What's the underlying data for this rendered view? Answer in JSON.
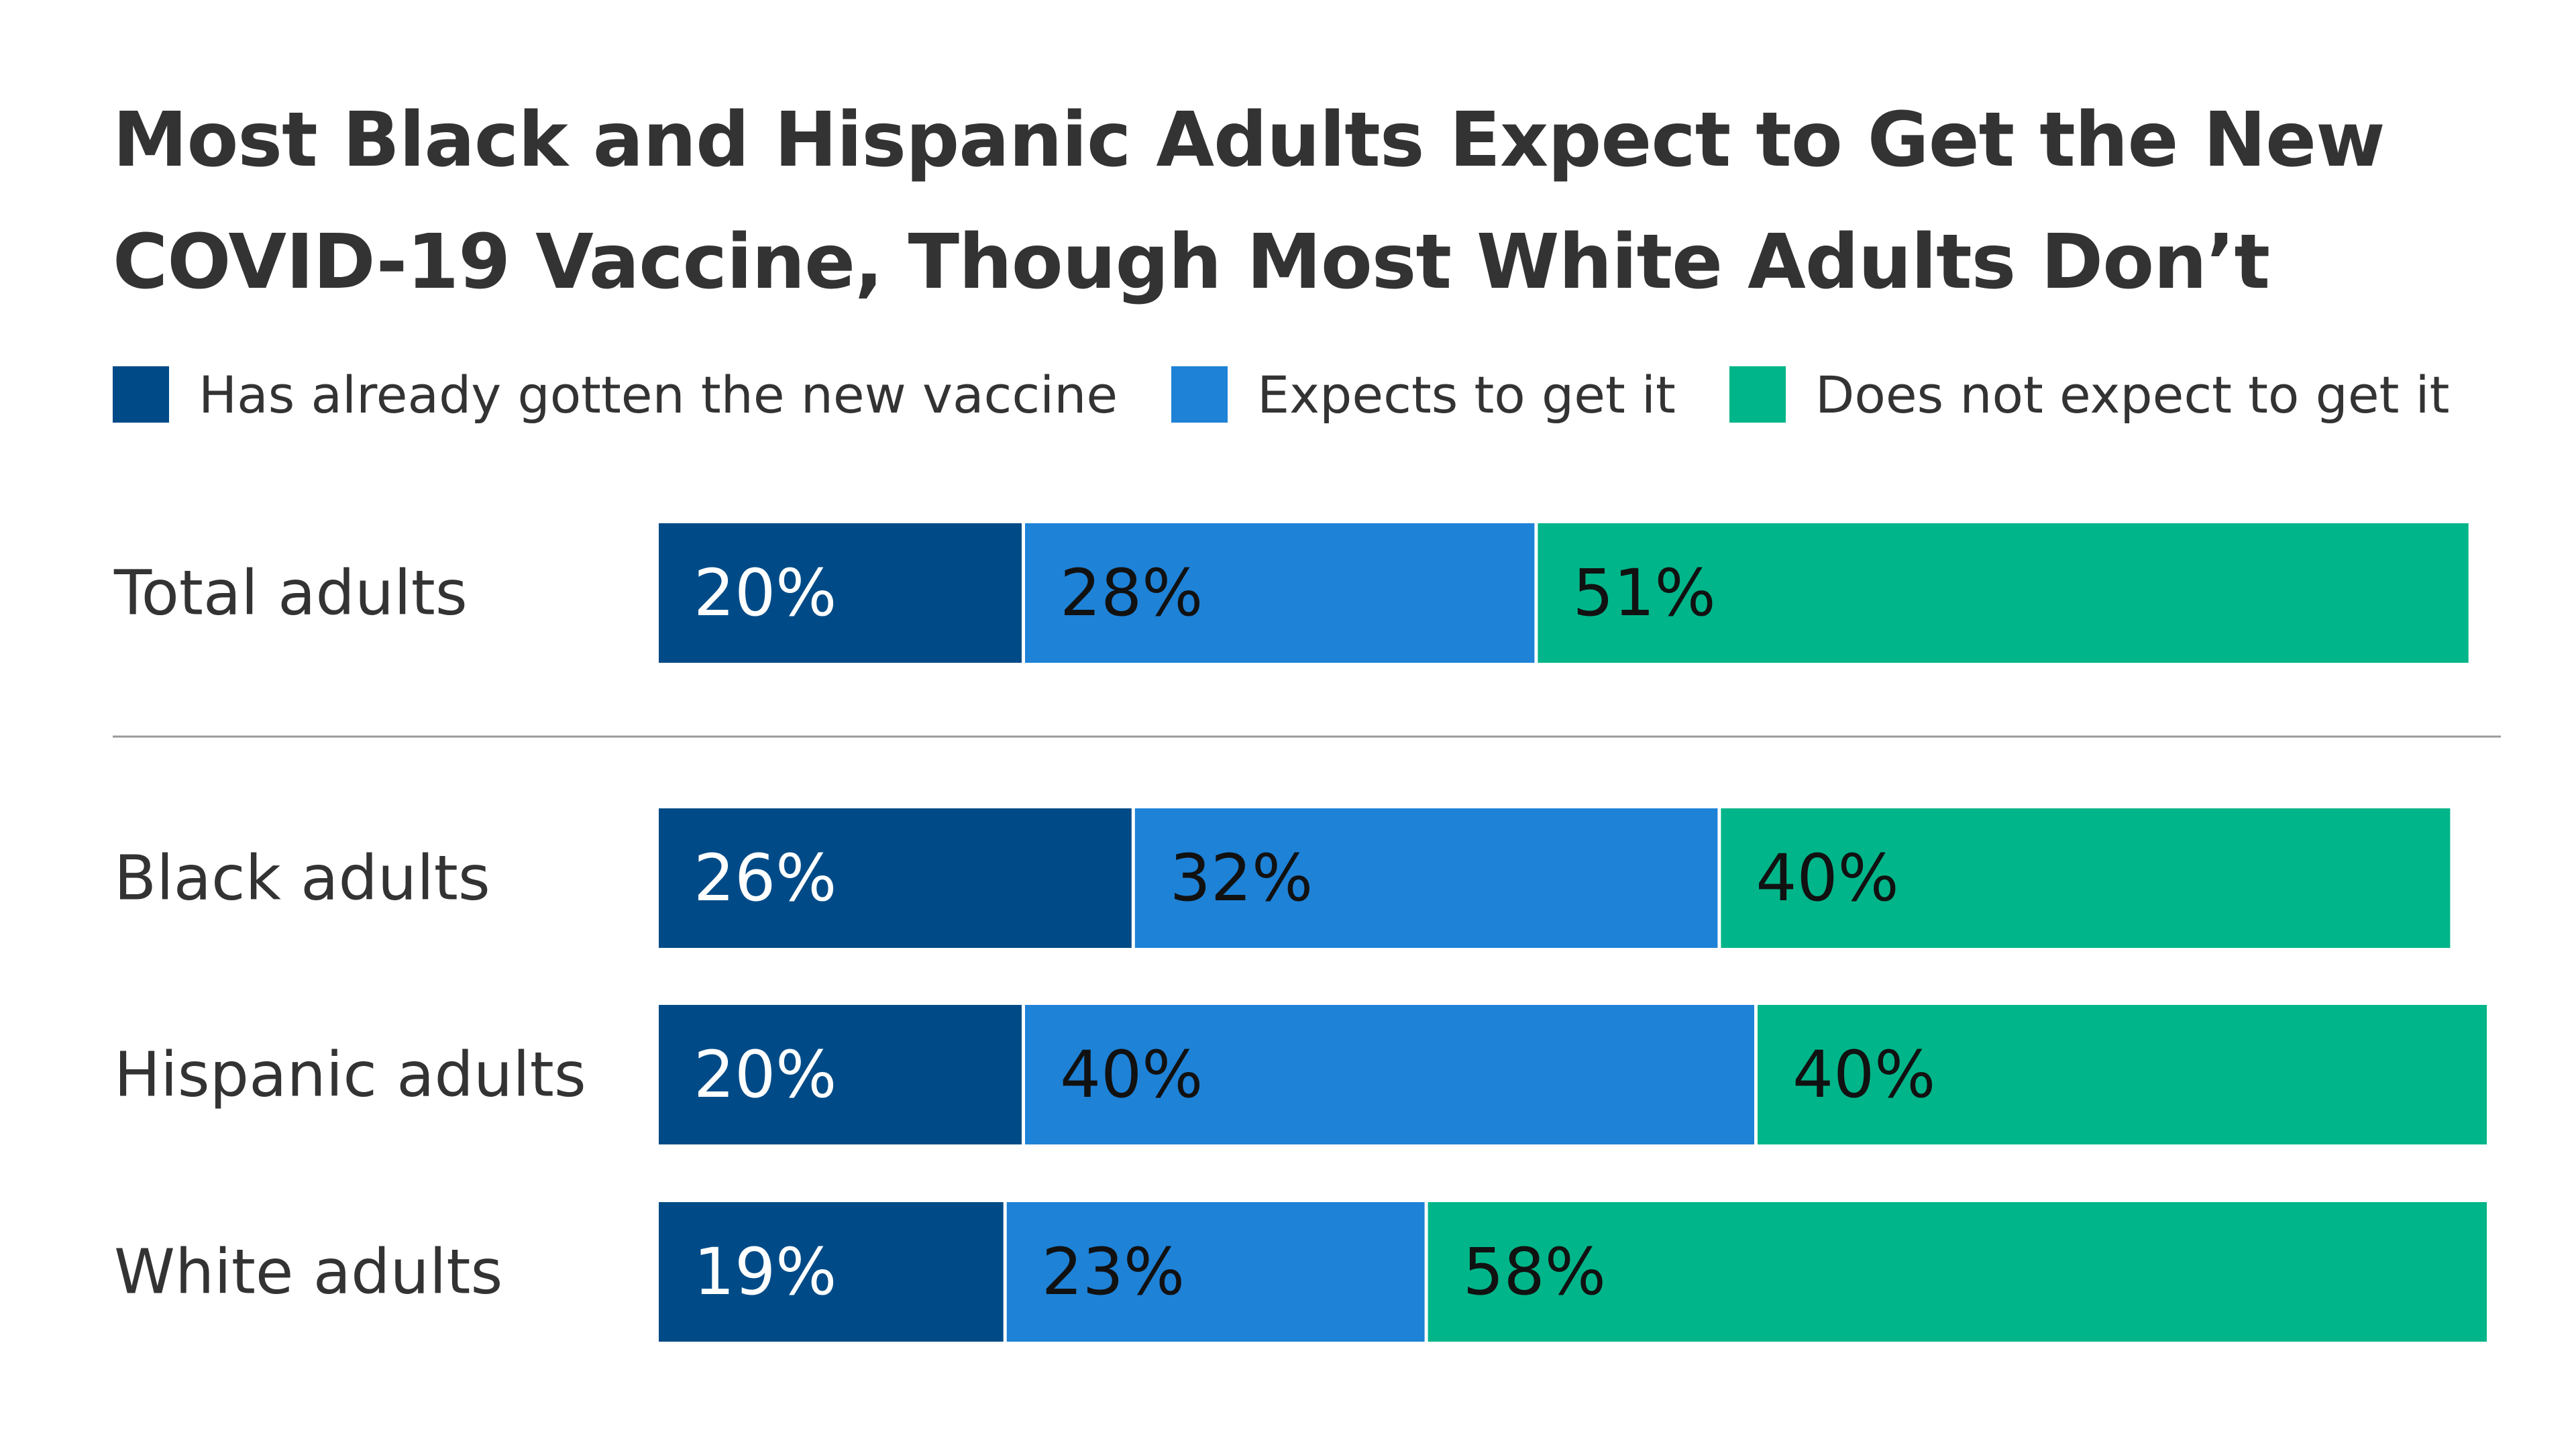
{
  "chart_data": {
    "type": "bar",
    "orientation": "horizontal",
    "stacked": true,
    "title": "Most Black and Hispanic Adults Expect to Get the New COVID-19 Vaccine, Though Most White Adults Don’t",
    "categories": [
      "Total adults",
      "Black adults",
      "Hispanic adults",
      "White adults"
    ],
    "series": [
      {
        "name": "Has already gotten the new vaccine",
        "values": [
          20,
          26,
          20,
          19
        ],
        "color": "#004b87",
        "label_color": "#ffffff"
      },
      {
        "name": "Expects to get it",
        "values": [
          28,
          32,
          40,
          23
        ],
        "color": "#1e82d7",
        "label_color": "#111111"
      },
      {
        "name": "Does not expect to get it",
        "values": [
          51,
          40,
          40,
          58
        ],
        "color": "#00b589",
        "label_color": "#111111"
      }
    ],
    "value_suffix": "%",
    "xlim": [
      0,
      100
    ],
    "legend_position": "top",
    "grid": false,
    "divider_after_category": "Total adults"
  }
}
